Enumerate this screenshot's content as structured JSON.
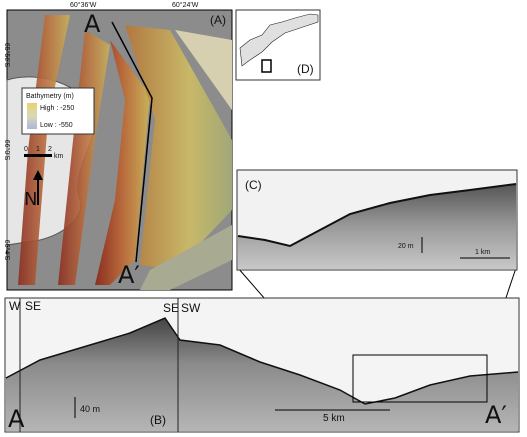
{
  "panel_a": {
    "label": "(A)",
    "lon_labels": [
      "60°36'W",
      "60°24'W"
    ],
    "lat_labels": [
      "65°56'S",
      "66°0'S",
      "66°4'S"
    ],
    "profile_start": "A",
    "profile_end": "A′",
    "legend": {
      "title": "Bathymetry (m)",
      "high": "High : -250",
      "low": "Low : -550"
    },
    "scale_bar": {
      "ticks": [
        "0",
        "1",
        "2"
      ],
      "unit": "km"
    },
    "north": "N"
  },
  "panel_d": {
    "label": "(D)"
  },
  "panel_c": {
    "label": "(C)",
    "vertical_scale": "20 m",
    "horizontal_scale": "1 km"
  },
  "panel_b": {
    "label": "(B)",
    "direction_labels": [
      "W",
      "SE",
      "SE",
      "SW"
    ],
    "vertical_scale": "40 m",
    "horizontal_scale": "5 km",
    "start": "A",
    "end": "A′"
  }
}
